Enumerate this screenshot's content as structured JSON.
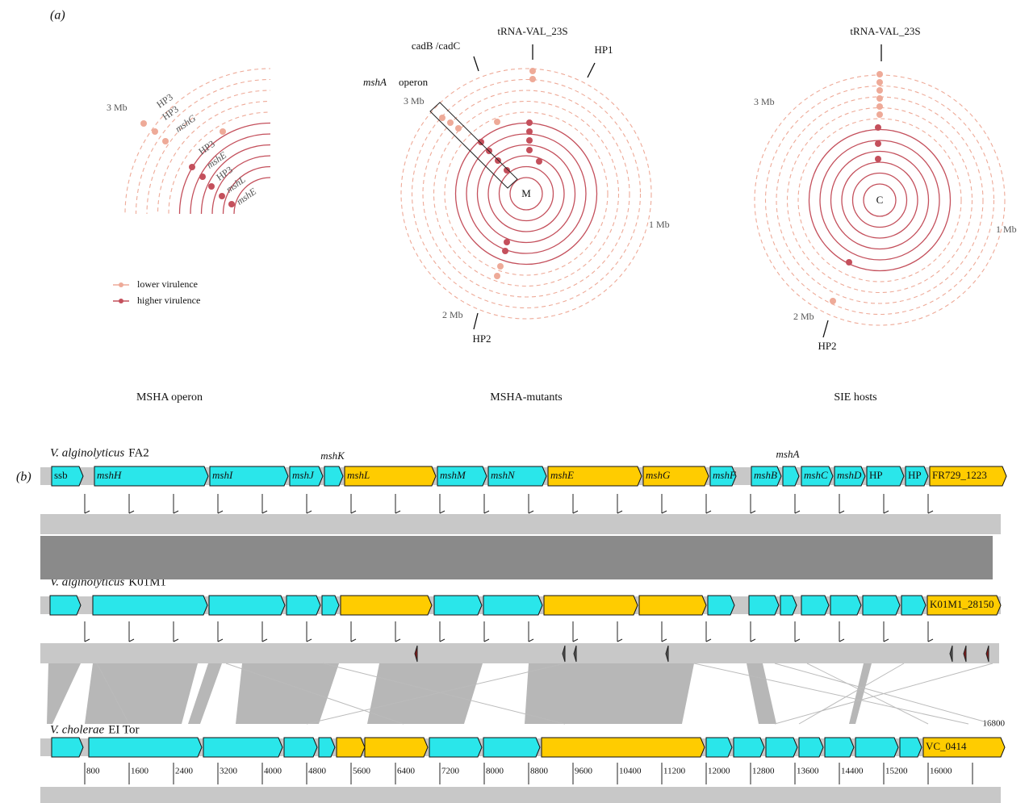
{
  "panel_a": {
    "label": "(a)",
    "legend": [
      "lower virulence",
      "higher virulence"
    ],
    "plots": [
      {
        "caption": "MSHA operon",
        "scale_labels": [
          "3 Mb"
        ],
        "gene_labels": [
          "HP3",
          "HP3",
          "mshG",
          "HP3",
          "mshE",
          "HP3",
          "mshL",
          "mshE"
        ]
      },
      {
        "caption": "MSHA-mutants",
        "center": "M",
        "scale_labels": [
          "3 Mb",
          "1 Mb",
          "2 Mb"
        ],
        "callouts": [
          "cadB /cadC",
          "tRNA-VAL_23S",
          "HP1",
          "HP2"
        ],
        "box_label": [
          "mshA",
          "operon"
        ]
      },
      {
        "caption": "SIE hosts",
        "center": "C",
        "scale_labels": [
          "3 Mb",
          "1 Mb",
          "2 Mb"
        ],
        "callouts": [
          "tRNA-VAL_23S",
          "HP2"
        ]
      }
    ]
  },
  "panel_b": {
    "label": "(b)",
    "genomes": [
      {
        "species": "V. alginolyticus",
        "strain": "FA2",
        "above": [
          "mshK",
          "mshA"
        ],
        "genes": [
          "ssb",
          "mshH",
          "mshI",
          "mshJ",
          "mshL",
          "mshM",
          "mshN",
          "mshE",
          "mshG",
          "mshF",
          "mshB",
          "mshC",
          "mshD",
          "HP",
          "HP",
          "FR729_1223"
        ]
      },
      {
        "species": "V. alginolyticus",
        "strain": "K01M1",
        "genes": [
          "K01M1_28150"
        ]
      },
      {
        "species": "V. cholerae",
        "strain": "EI Tor",
        "genes": [
          "VC_0414"
        ]
      }
    ],
    "ruler": {
      "ticks": [
        800,
        1600,
        2400,
        3200,
        4000,
        4800,
        5600,
        6400,
        7200,
        8000,
        8800,
        9600,
        10400,
        11200,
        12000,
        12800,
        13600,
        14400,
        15200,
        16000
      ],
      "end": 16800
    }
  }
}
